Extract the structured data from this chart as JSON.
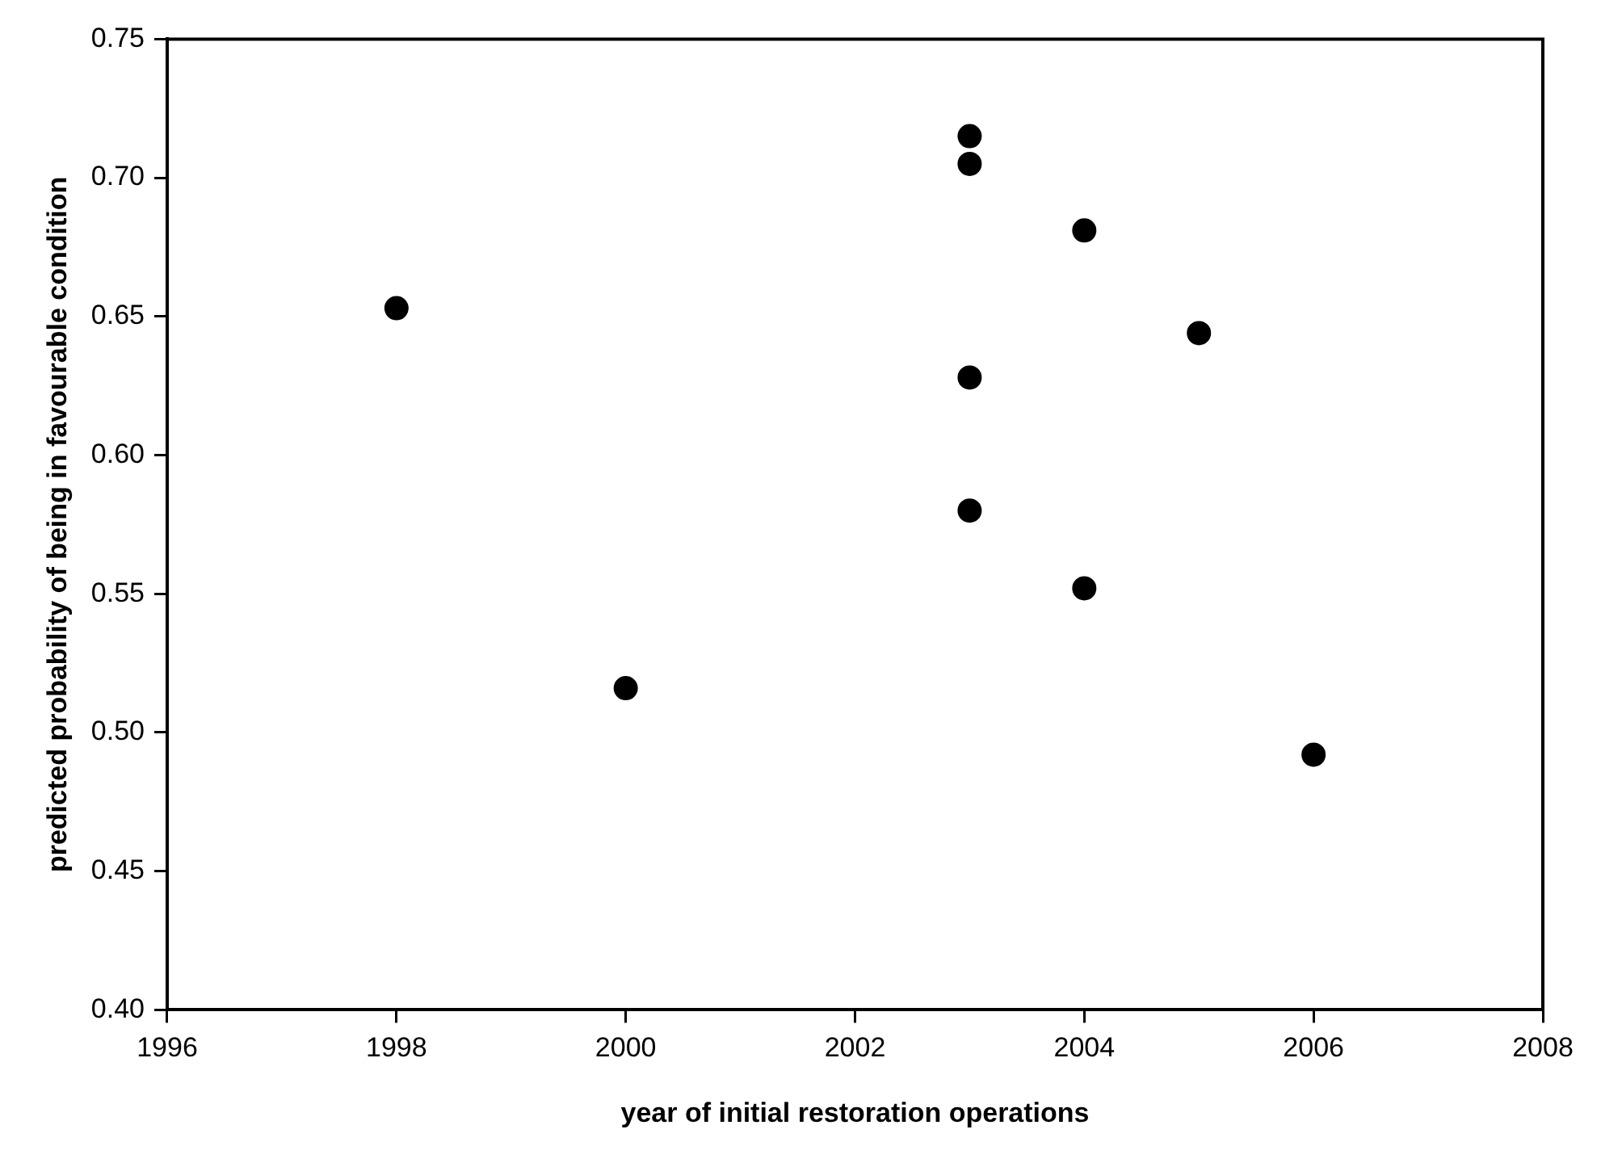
{
  "chart_data": {
    "type": "scatter",
    "xlabel": "year of initial restoration operations",
    "ylabel": "predicted probability of being in favourable condition",
    "x": [
      1998,
      2000,
      2003,
      2003,
      2003,
      2003,
      2004,
      2004,
      2005,
      2006
    ],
    "values": [
      0.653,
      0.516,
      0.715,
      0.705,
      0.628,
      0.58,
      0.681,
      0.552,
      0.644,
      0.492
    ],
    "color": "#000000",
    "marker": "circle",
    "xlim": [
      1996,
      2008
    ],
    "xticks": [
      1996,
      1998,
      2000,
      2002,
      2004,
      2006,
      2008
    ],
    "ylim": [
      0.4,
      0.75
    ],
    "yticks": [
      {
        "value": 0.4,
        "label": "0.40"
      },
      {
        "value": 0.45,
        "label": "0.45"
      },
      {
        "value": 0.5,
        "label": "0.50"
      },
      {
        "value": 0.55,
        "label": "0.55"
      },
      {
        "value": 0.6,
        "label": "0.60"
      },
      {
        "value": 0.65,
        "label": "0.65"
      },
      {
        "value": 0.7,
        "label": "0.70"
      },
      {
        "value": 0.75,
        "label": "0.75"
      }
    ],
    "grid": false,
    "legend": false
  }
}
